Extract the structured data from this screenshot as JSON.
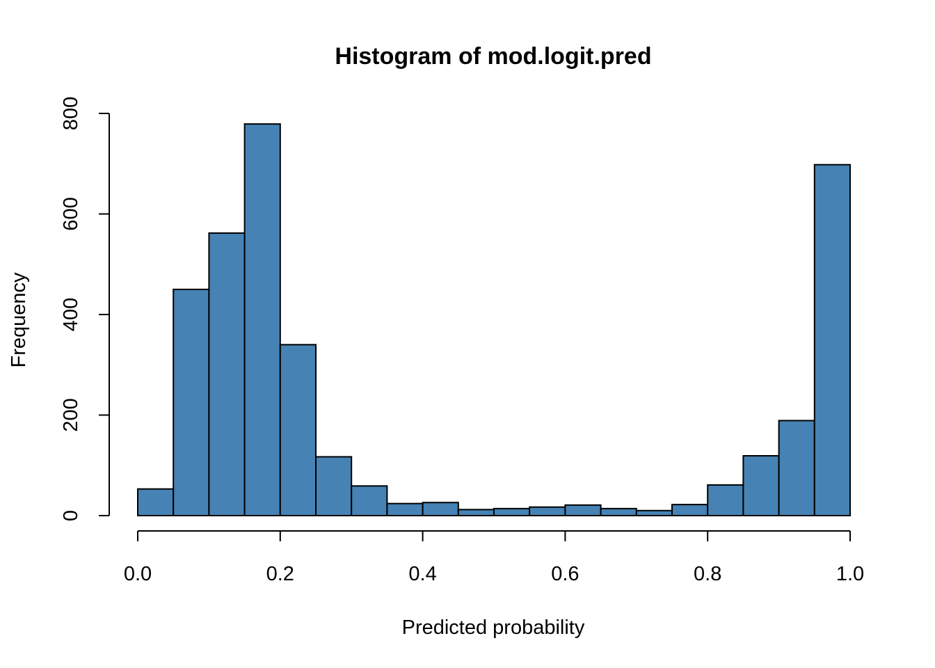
{
  "chart_data": {
    "type": "bar",
    "title": "Histogram of mod.logit.pred",
    "xlabel": "Predicted probability",
    "ylabel": "Frequency",
    "bin_width": 0.05,
    "bin_edges": [
      0.0,
      0.05,
      0.1,
      0.15,
      0.2,
      0.25,
      0.3,
      0.35,
      0.4,
      0.45,
      0.5,
      0.55,
      0.6,
      0.65,
      0.7,
      0.75,
      0.8,
      0.85,
      0.9,
      0.95,
      1.0
    ],
    "values": [
      53,
      450,
      562,
      779,
      340,
      117,
      59,
      24,
      26,
      12,
      14,
      17,
      21,
      14,
      10,
      22,
      61,
      119,
      189,
      698
    ],
    "xlim": [
      0,
      1
    ],
    "ylim": [
      0,
      800
    ],
    "x_ticks": [
      "0.0",
      "0.2",
      "0.4",
      "0.6",
      "0.8",
      "1.0"
    ],
    "y_ticks": [
      "0",
      "200",
      "400",
      "600",
      "800"
    ],
    "bar_color": "#4682B4",
    "grid": false,
    "legend": "none"
  }
}
